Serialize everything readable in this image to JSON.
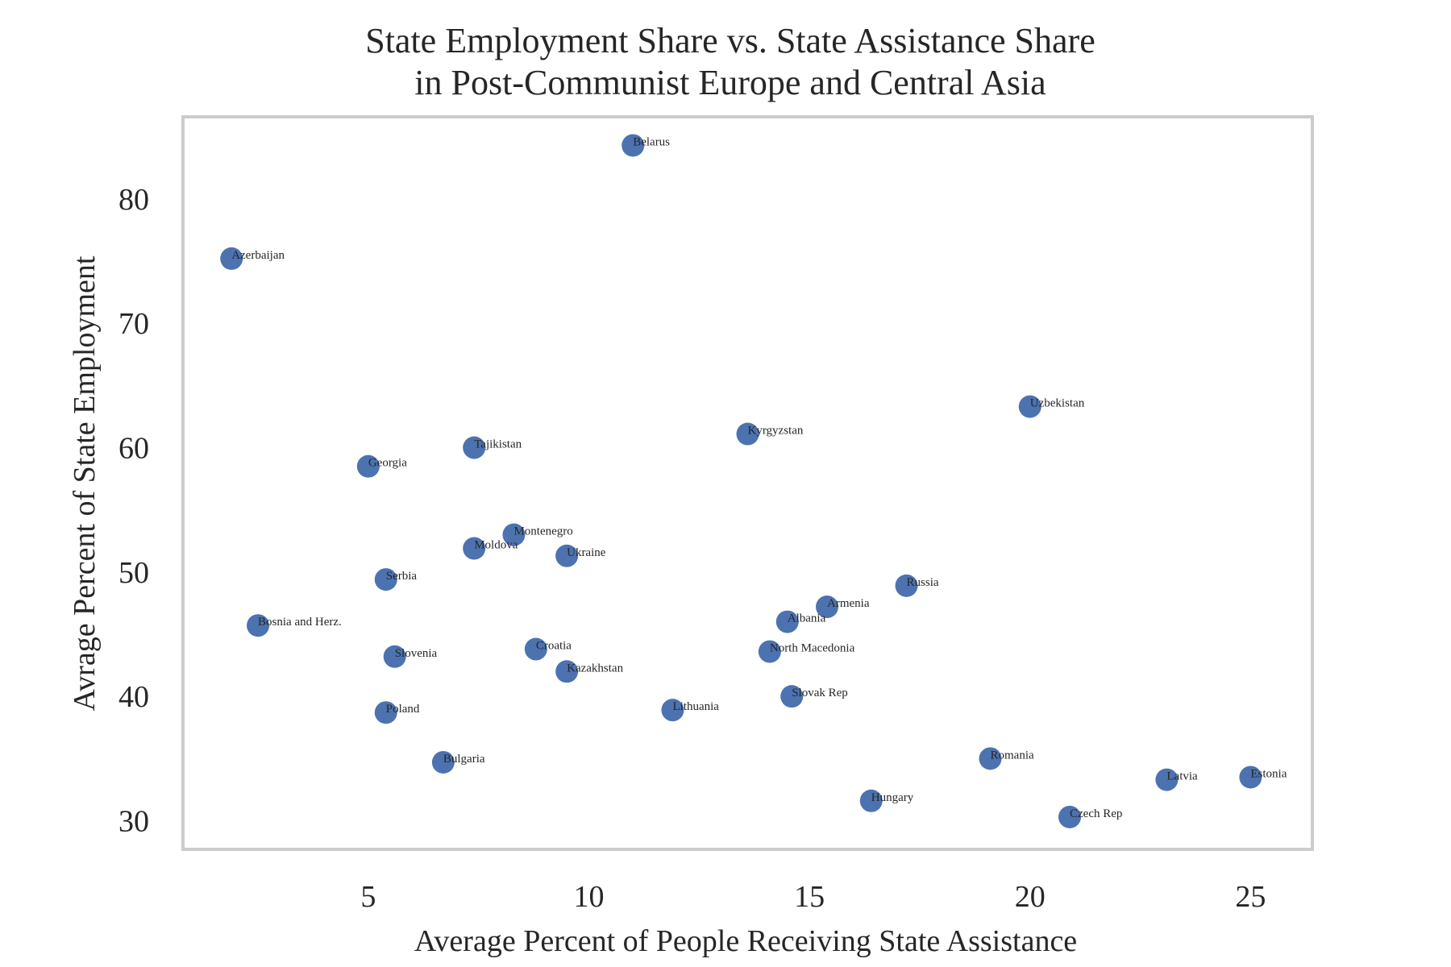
{
  "chart_data": {
    "type": "scatter",
    "title_lines": [
      "State Employment Share vs. State Assistance Share",
      "in Post-Communist Europe and Central Asia"
    ],
    "xlabel": "Average Percent of People Receiving State Assistance",
    "ylabel": "Avrage Percent of State Employment",
    "xlim": [
      0.8,
      26.4
    ],
    "ylim": [
      27.7,
      86.6
    ],
    "xticks": [
      5,
      10,
      15,
      20,
      25
    ],
    "yticks": [
      30,
      40,
      50,
      60,
      70,
      80
    ],
    "grid": false,
    "point_color": "#4c72b0",
    "points": [
      {
        "label": "Belarus",
        "x": 11.0,
        "y": 84.3
      },
      {
        "label": "Azerbaijan",
        "x": 1.9,
        "y": 75.2
      },
      {
        "label": "Uzbekistan",
        "x": 20.0,
        "y": 63.3
      },
      {
        "label": "Kyrgyzstan",
        "x": 13.6,
        "y": 61.1
      },
      {
        "label": "Tajikistan",
        "x": 7.4,
        "y": 60.0
      },
      {
        "label": "Georgia",
        "x": 5.0,
        "y": 58.5
      },
      {
        "label": "Montenegro",
        "x": 8.3,
        "y": 53.0
      },
      {
        "label": "Moldova",
        "x": 7.4,
        "y": 51.9
      },
      {
        "label": "Ukraine",
        "x": 9.5,
        "y": 51.3
      },
      {
        "label": "Serbia",
        "x": 5.4,
        "y": 49.4
      },
      {
        "label": "Russia",
        "x": 17.2,
        "y": 48.9
      },
      {
        "label": "Armenia",
        "x": 15.4,
        "y": 47.2
      },
      {
        "label": "Albania",
        "x": 14.5,
        "y": 46.0
      },
      {
        "label": "Bosnia and Herz.",
        "x": 2.5,
        "y": 45.7
      },
      {
        "label": "Croatia",
        "x": 8.8,
        "y": 43.8
      },
      {
        "label": "North Macedonia",
        "x": 14.1,
        "y": 43.6
      },
      {
        "label": "Slovenia",
        "x": 5.6,
        "y": 43.2
      },
      {
        "label": "Kazakhstan",
        "x": 9.5,
        "y": 42.0
      },
      {
        "label": "Slovak Rep",
        "x": 14.6,
        "y": 40.0
      },
      {
        "label": "Lithuania",
        "x": 11.9,
        "y": 38.9
      },
      {
        "label": "Poland",
        "x": 5.4,
        "y": 38.7
      },
      {
        "label": "Bulgaria",
        "x": 6.7,
        "y": 34.7
      },
      {
        "label": "Romania",
        "x": 19.1,
        "y": 35.0
      },
      {
        "label": "Latvia",
        "x": 23.1,
        "y": 33.3
      },
      {
        "label": "Estonia",
        "x": 25.0,
        "y": 33.5
      },
      {
        "label": "Hungary",
        "x": 16.4,
        "y": 31.6
      },
      {
        "label": "Czech Rep",
        "x": 20.9,
        "y": 30.3
      }
    ]
  }
}
